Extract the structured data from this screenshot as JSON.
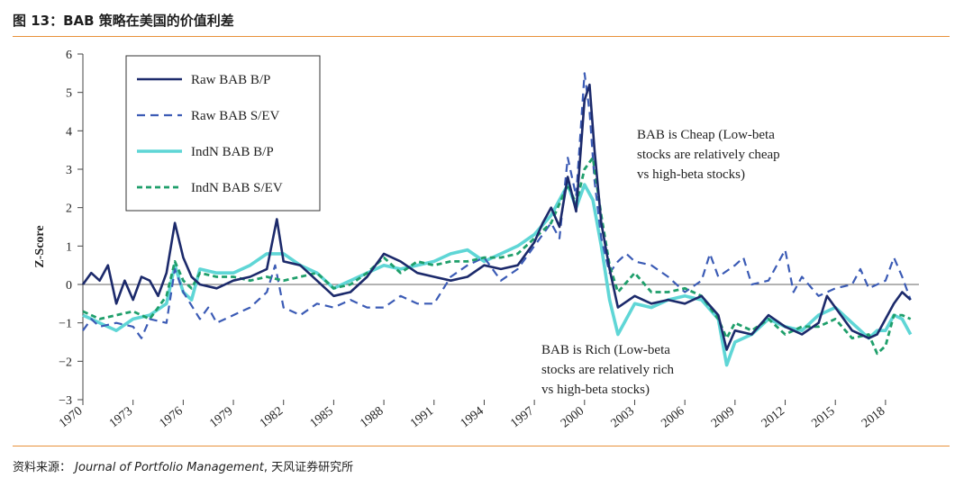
{
  "figure": {
    "title": "图 13：BAB 策略在美国的价值利差",
    "source_label": "资料来源：",
    "source_journal": "Journal of Portfolio Management",
    "source_sep": ", ",
    "source_org": "天风证券研究所"
  },
  "chart_data": {
    "type": "line",
    "title": "",
    "xlabel": "",
    "ylabel": "Z-Score",
    "xlim": [
      1970,
      2020
    ],
    "ylim": [
      -3,
      6
    ],
    "x_ticks": [
      1970,
      1973,
      1976,
      1979,
      1982,
      1985,
      1988,
      1991,
      1994,
      1997,
      2000,
      2003,
      2006,
      2009,
      2012,
      2015,
      2018
    ],
    "x_tick_labels": [
      "1970",
      "1973",
      "1976",
      "1979",
      "1982",
      "1985",
      "1988",
      "1991",
      "1994",
      "1997",
      "2000",
      "2003",
      "2006",
      "2009",
      "2012",
      "2015",
      "2018"
    ],
    "y_ticks": [
      -3,
      -2,
      -1,
      0,
      1,
      2,
      3,
      4,
      5,
      6
    ],
    "y_tick_labels": [
      "−3",
      "−2",
      "−1",
      "0",
      "1",
      "2",
      "3",
      "4",
      "5",
      "6"
    ],
    "zero_line": true,
    "legend_position": "top-left",
    "series": [
      {
        "name": "Raw BAB B/P",
        "color": "#1c2a6b",
        "style": "solid",
        "points": [
          [
            1970,
            0
          ],
          [
            1970.5,
            0.3
          ],
          [
            1971,
            0.1
          ],
          [
            1971.5,
            0.5
          ],
          [
            1972,
            -0.5
          ],
          [
            1972.5,
            0.1
          ],
          [
            1973,
            -0.4
          ],
          [
            1973.5,
            0.2
          ],
          [
            1974,
            0.1
          ],
          [
            1974.5,
            -0.3
          ],
          [
            1975,
            0.3
          ],
          [
            1975.5,
            1.6
          ],
          [
            1976,
            0.7
          ],
          [
            1976.5,
            0.2
          ],
          [
            1977,
            0
          ],
          [
            1978,
            -0.1
          ],
          [
            1979,
            0.1
          ],
          [
            1980,
            0.2
          ],
          [
            1981,
            0.4
          ],
          [
            1981.6,
            1.7
          ],
          [
            1982,
            0.6
          ],
          [
            1983,
            0.5
          ],
          [
            1984,
            0.1
          ],
          [
            1985,
            -0.3
          ],
          [
            1986,
            -0.2
          ],
          [
            1987,
            0.2
          ],
          [
            1988,
            0.8
          ],
          [
            1989,
            0.6
          ],
          [
            1990,
            0.3
          ],
          [
            1991,
            0.2
          ],
          [
            1992,
            0.1
          ],
          [
            1993,
            0.2
          ],
          [
            1994,
            0.5
          ],
          [
            1995,
            0.4
          ],
          [
            1996,
            0.5
          ],
          [
            1997,
            1.1
          ],
          [
            1997.5,
            1.6
          ],
          [
            1998,
            2.0
          ],
          [
            1998.5,
            1.5
          ],
          [
            1999,
            2.8
          ],
          [
            1999.5,
            1.9
          ],
          [
            2000,
            4.8
          ],
          [
            2000.3,
            5.2
          ],
          [
            2000.6,
            3.5
          ],
          [
            2001,
            1.6
          ],
          [
            2001.5,
            0.4
          ],
          [
            2002,
            -0.6
          ],
          [
            2003,
            -0.3
          ],
          [
            2004,
            -0.5
          ],
          [
            2005,
            -0.4
          ],
          [
            2006,
            -0.5
          ],
          [
            2007,
            -0.3
          ],
          [
            2008,
            -0.8
          ],
          [
            2008.5,
            -1.7
          ],
          [
            2009,
            -1.2
          ],
          [
            2010,
            -1.3
          ],
          [
            2011,
            -0.8
          ],
          [
            2012,
            -1.1
          ],
          [
            2013,
            -1.3
          ],
          [
            2014,
            -1.0
          ],
          [
            2014.5,
            -0.3
          ],
          [
            2015,
            -0.6
          ],
          [
            2016,
            -1.2
          ],
          [
            2017,
            -1.4
          ],
          [
            2017.5,
            -1.3
          ],
          [
            2018,
            -0.9
          ],
          [
            2018.5,
            -0.5
          ],
          [
            2019,
            -0.2
          ],
          [
            2019.5,
            -0.4
          ]
        ]
      },
      {
        "name": "Raw BAB S/EV",
        "color": "#3b5bb5",
        "style": "dashed",
        "points": [
          [
            1970,
            -1.2
          ],
          [
            1970.5,
            -0.9
          ],
          [
            1971,
            -1.1
          ],
          [
            1972,
            -1.0
          ],
          [
            1973,
            -1.1
          ],
          [
            1973.5,
            -1.4
          ],
          [
            1974,
            -0.9
          ],
          [
            1975,
            -1.0
          ],
          [
            1975.5,
            0.4
          ],
          [
            1976,
            -0.2
          ],
          [
            1977,
            -0.9
          ],
          [
            1977.5,
            -0.6
          ],
          [
            1978,
            -1.0
          ],
          [
            1979,
            -0.8
          ],
          [
            1980,
            -0.6
          ],
          [
            1981,
            -0.2
          ],
          [
            1981.5,
            0.5
          ],
          [
            1982,
            -0.6
          ],
          [
            1983,
            -0.8
          ],
          [
            1984,
            -0.5
          ],
          [
            1985,
            -0.6
          ],
          [
            1986,
            -0.4
          ],
          [
            1987,
            -0.6
          ],
          [
            1988,
            -0.6
          ],
          [
            1989,
            -0.3
          ],
          [
            1990,
            -0.5
          ],
          [
            1991,
            -0.5
          ],
          [
            1992,
            0.2
          ],
          [
            1993,
            0.5
          ],
          [
            1994,
            0.7
          ],
          [
            1995,
            0.1
          ],
          [
            1996,
            0.4
          ],
          [
            1997,
            1.0
          ],
          [
            1998,
            1.6
          ],
          [
            1998.5,
            1.2
          ],
          [
            1999,
            3.3
          ],
          [
            1999.5,
            2.3
          ],
          [
            2000,
            5.5
          ],
          [
            2000.3,
            4.5
          ],
          [
            2000.6,
            2.7
          ],
          [
            2001,
            1.2
          ],
          [
            2001.5,
            0.3
          ],
          [
            2002,
            0.6
          ],
          [
            2002.5,
            0.8
          ],
          [
            2003,
            0.6
          ],
          [
            2004,
            0.5
          ],
          [
            2005,
            0.2
          ],
          [
            2006,
            -0.2
          ],
          [
            2007,
            0.1
          ],
          [
            2007.5,
            0.8
          ],
          [
            2008,
            0.2
          ],
          [
            2009,
            0.5
          ],
          [
            2009.5,
            0.7
          ],
          [
            2010,
            0
          ],
          [
            2011,
            0.1
          ],
          [
            2012,
            0.9
          ],
          [
            2012.5,
            -0.2
          ],
          [
            2013,
            0.2
          ],
          [
            2014,
            -0.3
          ],
          [
            2015,
            -0.1
          ],
          [
            2016,
            0
          ],
          [
            2016.5,
            0.4
          ],
          [
            2017,
            -0.1
          ],
          [
            2018,
            0.1
          ],
          [
            2018.5,
            0.7
          ],
          [
            2019,
            0.2
          ],
          [
            2019.5,
            -0.4
          ]
        ]
      },
      {
        "name": "IndN BAB B/P",
        "color": "#5fd6d6",
        "style": "solid",
        "points": [
          [
            1970,
            -0.8
          ],
          [
            1970.5,
            -0.9
          ],
          [
            1971,
            -1.0
          ],
          [
            1972,
            -1.2
          ],
          [
            1973,
            -0.9
          ],
          [
            1974,
            -0.8
          ],
          [
            1975,
            -0.5
          ],
          [
            1975.5,
            0.5
          ],
          [
            1976,
            -0.2
          ],
          [
            1976.5,
            -0.4
          ],
          [
            1977,
            0.4
          ],
          [
            1978,
            0.3
          ],
          [
            1979,
            0.3
          ],
          [
            1980,
            0.5
          ],
          [
            1981,
            0.8
          ],
          [
            1982,
            0.8
          ],
          [
            1983,
            0.5
          ],
          [
            1984,
            0.3
          ],
          [
            1985,
            -0.1
          ],
          [
            1986,
            0.1
          ],
          [
            1987,
            0.3
          ],
          [
            1988,
            0.5
          ],
          [
            1989,
            0.4
          ],
          [
            1990,
            0.5
          ],
          [
            1991,
            0.6
          ],
          [
            1992,
            0.8
          ],
          [
            1993,
            0.9
          ],
          [
            1994,
            0.6
          ],
          [
            1995,
            0.8
          ],
          [
            1996,
            1.0
          ],
          [
            1997,
            1.3
          ],
          [
            1998,
            1.8
          ],
          [
            1999,
            2.6
          ],
          [
            1999.5,
            2.0
          ],
          [
            2000,
            2.6
          ],
          [
            2000.5,
            2.2
          ],
          [
            2001,
            1.0
          ],
          [
            2001.5,
            -0.4
          ],
          [
            2002,
            -1.3
          ],
          [
            2003,
            -0.5
          ],
          [
            2004,
            -0.6
          ],
          [
            2005,
            -0.4
          ],
          [
            2006,
            -0.3
          ],
          [
            2007,
            -0.4
          ],
          [
            2008,
            -0.9
          ],
          [
            2008.5,
            -2.1
          ],
          [
            2009,
            -1.5
          ],
          [
            2010,
            -1.3
          ],
          [
            2011,
            -0.9
          ],
          [
            2012,
            -1.1
          ],
          [
            2013,
            -1.2
          ],
          [
            2014,
            -0.8
          ],
          [
            2015,
            -0.6
          ],
          [
            2016,
            -1.0
          ],
          [
            2017,
            -1.4
          ],
          [
            2017.5,
            -1.2
          ],
          [
            2018,
            -1.2
          ],
          [
            2018.5,
            -0.8
          ],
          [
            2019,
            -0.9
          ],
          [
            2019.5,
            -1.3
          ]
        ]
      },
      {
        "name": "IndN BAB S/EV",
        "color": "#1f9f6b",
        "style": "dashed",
        "points": [
          [
            1970,
            -0.7
          ],
          [
            1970.5,
            -0.8
          ],
          [
            1971,
            -0.9
          ],
          [
            1972,
            -0.8
          ],
          [
            1973,
            -0.7
          ],
          [
            1974,
            -0.9
          ],
          [
            1975,
            -0.3
          ],
          [
            1975.5,
            0.6
          ],
          [
            1976,
            0.1
          ],
          [
            1976.5,
            -0.1
          ],
          [
            1977,
            0.3
          ],
          [
            1978,
            0.2
          ],
          [
            1979,
            0.2
          ],
          [
            1980,
            0.1
          ],
          [
            1981,
            0.2
          ],
          [
            1982,
            0.1
          ],
          [
            1983,
            0.2
          ],
          [
            1984,
            0.3
          ],
          [
            1985,
            -0.1
          ],
          [
            1986,
            0
          ],
          [
            1987,
            0.3
          ],
          [
            1988,
            0.7
          ],
          [
            1989,
            0.3
          ],
          [
            1990,
            0.6
          ],
          [
            1991,
            0.5
          ],
          [
            1992,
            0.6
          ],
          [
            1993,
            0.6
          ],
          [
            1994,
            0.7
          ],
          [
            1995,
            0.7
          ],
          [
            1996,
            0.8
          ],
          [
            1997,
            1.2
          ],
          [
            1998,
            1.6
          ],
          [
            1999,
            2.6
          ],
          [
            1999.5,
            2.1
          ],
          [
            2000,
            3.0
          ],
          [
            2000.5,
            3.3
          ],
          [
            2001,
            1.8
          ],
          [
            2001.5,
            0.5
          ],
          [
            2002,
            -0.2
          ],
          [
            2003,
            0.3
          ],
          [
            2004,
            -0.2
          ],
          [
            2005,
            -0.2
          ],
          [
            2006,
            -0.1
          ],
          [
            2007,
            -0.3
          ],
          [
            2008,
            -0.9
          ],
          [
            2008.5,
            -1.4
          ],
          [
            2009,
            -1.0
          ],
          [
            2010,
            -1.2
          ],
          [
            2011,
            -0.9
          ],
          [
            2012,
            -1.3
          ],
          [
            2013,
            -1.1
          ],
          [
            2014,
            -1.1
          ],
          [
            2015,
            -0.9
          ],
          [
            2016,
            -1.4
          ],
          [
            2017,
            -1.3
          ],
          [
            2017.5,
            -1.8
          ],
          [
            2018,
            -1.6
          ],
          [
            2018.5,
            -0.8
          ],
          [
            2019,
            -0.8
          ],
          [
            2019.5,
            -0.9
          ]
        ]
      }
    ],
    "annotations": [
      {
        "lines": [
          "BAB is Cheap (Low-beta",
          "stocks are relatively cheap",
          "vs high-beta stocks)"
        ]
      },
      {
        "lines": [
          "BAB is Rich (Low-beta",
          "stocks are relatively rich",
          "vs high-beta stocks)"
        ]
      }
    ]
  }
}
